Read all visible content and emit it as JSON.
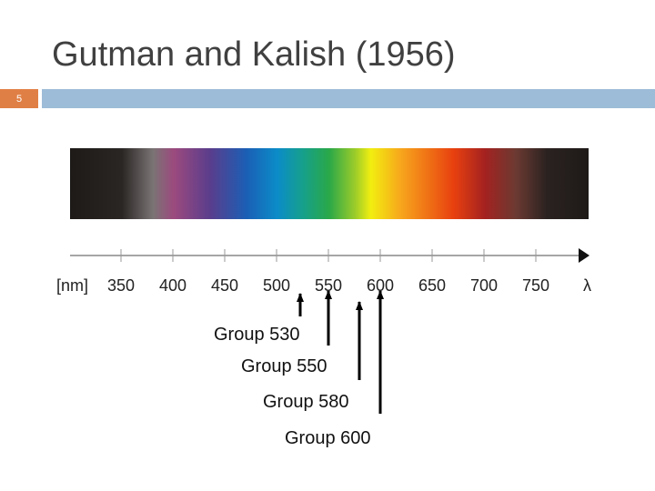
{
  "header": {
    "title": "Gutman and Kalish (1956)",
    "slide_number": "5"
  },
  "figure": {
    "unit_label": "[nm]",
    "axis_end_label": "λ",
    "tick_labels": [
      "350",
      "400",
      "450",
      "500",
      "550",
      "600",
      "650",
      "700",
      "750"
    ],
    "groups": [
      "Group 530",
      "Group 550",
      "Group 580",
      "Group 600"
    ]
  }
}
